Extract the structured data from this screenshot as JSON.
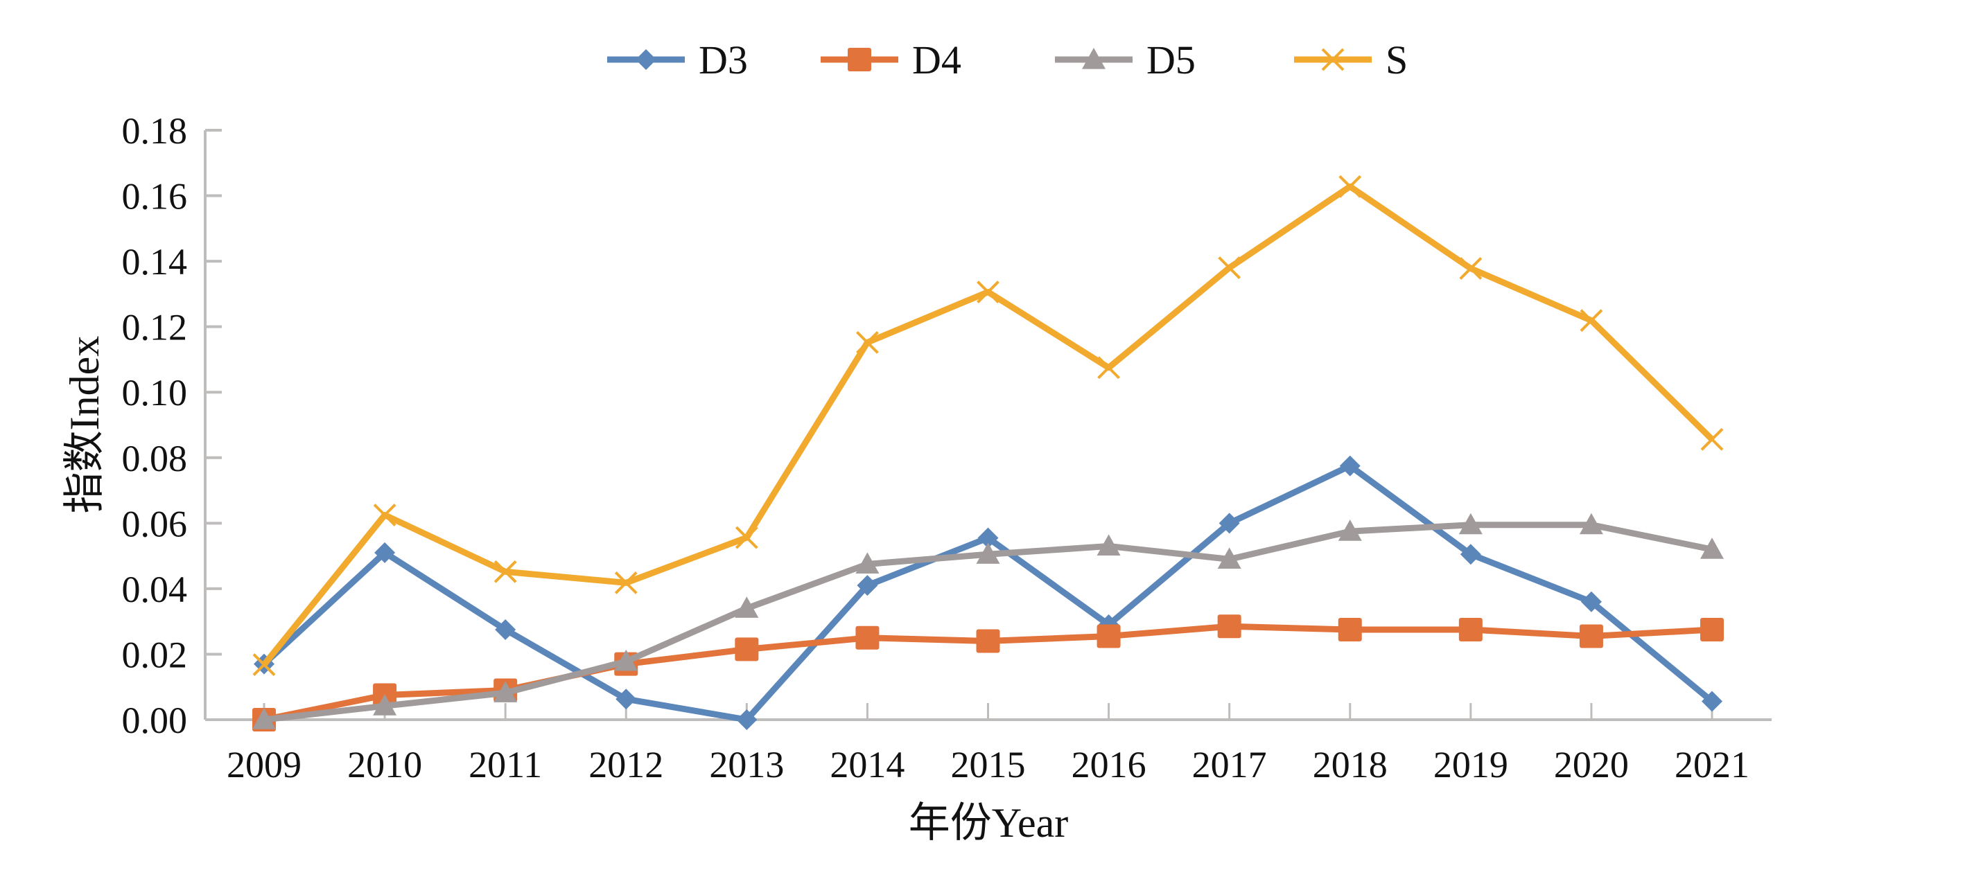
{
  "chart_data": {
    "type": "line",
    "title": "",
    "xlabel": "年份Year",
    "ylabel": "指数Index",
    "x": [
      "2009",
      "2010",
      "2011",
      "2012",
      "2013",
      "2014",
      "2015",
      "2016",
      "2017",
      "2018",
      "2019",
      "2020",
      "2021"
    ],
    "ylim": [
      0,
      0.18
    ],
    "yticks": [
      "0.00",
      "0.02",
      "0.04",
      "0.06",
      "0.08",
      "0.10",
      "0.12",
      "0.14",
      "0.16",
      "0.18"
    ],
    "grid": false,
    "legend_position": "top-center",
    "series": [
      {
        "name": "D3",
        "color": "#5b86ba",
        "marker": "diamond",
        "values": [
          0.017,
          0.051,
          0.0275,
          0.0063,
          0.0,
          0.041,
          0.0555,
          0.029,
          0.06,
          0.0775,
          0.0505,
          0.036,
          0.0056
        ]
      },
      {
        "name": "D4",
        "color": "#e2733b",
        "marker": "square",
        "values": [
          0.0,
          0.0075,
          0.009,
          0.017,
          0.0215,
          0.025,
          0.024,
          0.0255,
          0.0285,
          0.0275,
          0.0275,
          0.0255,
          0.0275
        ]
      },
      {
        "name": "D5",
        "color": "#a09a9a",
        "marker": "triangle",
        "values": [
          0.0,
          0.0042,
          0.0082,
          0.0178,
          0.034,
          0.0475,
          0.0505,
          0.053,
          0.049,
          0.0575,
          0.0595,
          0.0595,
          0.052
        ]
      },
      {
        "name": "S",
        "color": "#f1aa2e",
        "marker": "x",
        "values": [
          0.0168,
          0.0625,
          0.0452,
          0.0418,
          0.0556,
          0.1152,
          0.1306,
          0.1075,
          0.138,
          0.1628,
          0.1378,
          0.1219,
          0.0856
        ]
      }
    ]
  }
}
